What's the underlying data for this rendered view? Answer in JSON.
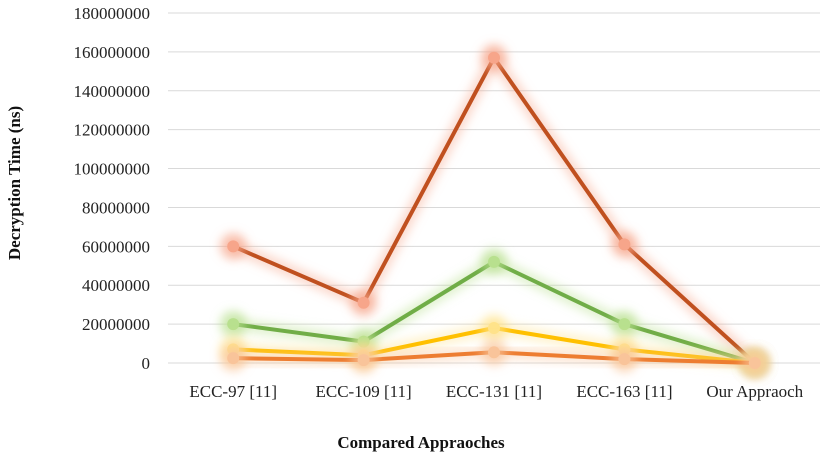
{
  "chart_data": {
    "type": "line",
    "title": "",
    "xlabel": "Compared Appraoches",
    "ylabel": "Decryption Time (ns)",
    "ylim": [
      0,
      180000000
    ],
    "yticks": [
      "0",
      "20000000",
      "40000000",
      "60000000",
      "80000000",
      "100000000",
      "120000000",
      "140000000",
      "160000000",
      "180000000"
    ],
    "categories": [
      "ECC-97 [11]",
      "ECC-109 [11]",
      "ECC-131 [11]",
      "ECC-163 [11]",
      "Our Appraoch"
    ],
    "grid": true,
    "legend": "none",
    "series": [
      {
        "color": "#c0501f",
        "glow": "#f7a58a",
        "values": [
          60000000,
          31000000,
          157000000,
          61000000,
          0
        ]
      },
      {
        "color": "#70ad47",
        "glow": "#b8e08e",
        "values": [
          20000000,
          11000000,
          52000000,
          20000000,
          0
        ]
      },
      {
        "color": "#ffc000",
        "glow": "#ffe38a",
        "values": [
          7000000,
          4000000,
          18000000,
          7000000,
          0
        ]
      },
      {
        "color": "#ed7d31",
        "glow": "#f9c49a",
        "values": [
          2500000,
          1500000,
          5500000,
          2000000,
          0
        ]
      }
    ]
  }
}
